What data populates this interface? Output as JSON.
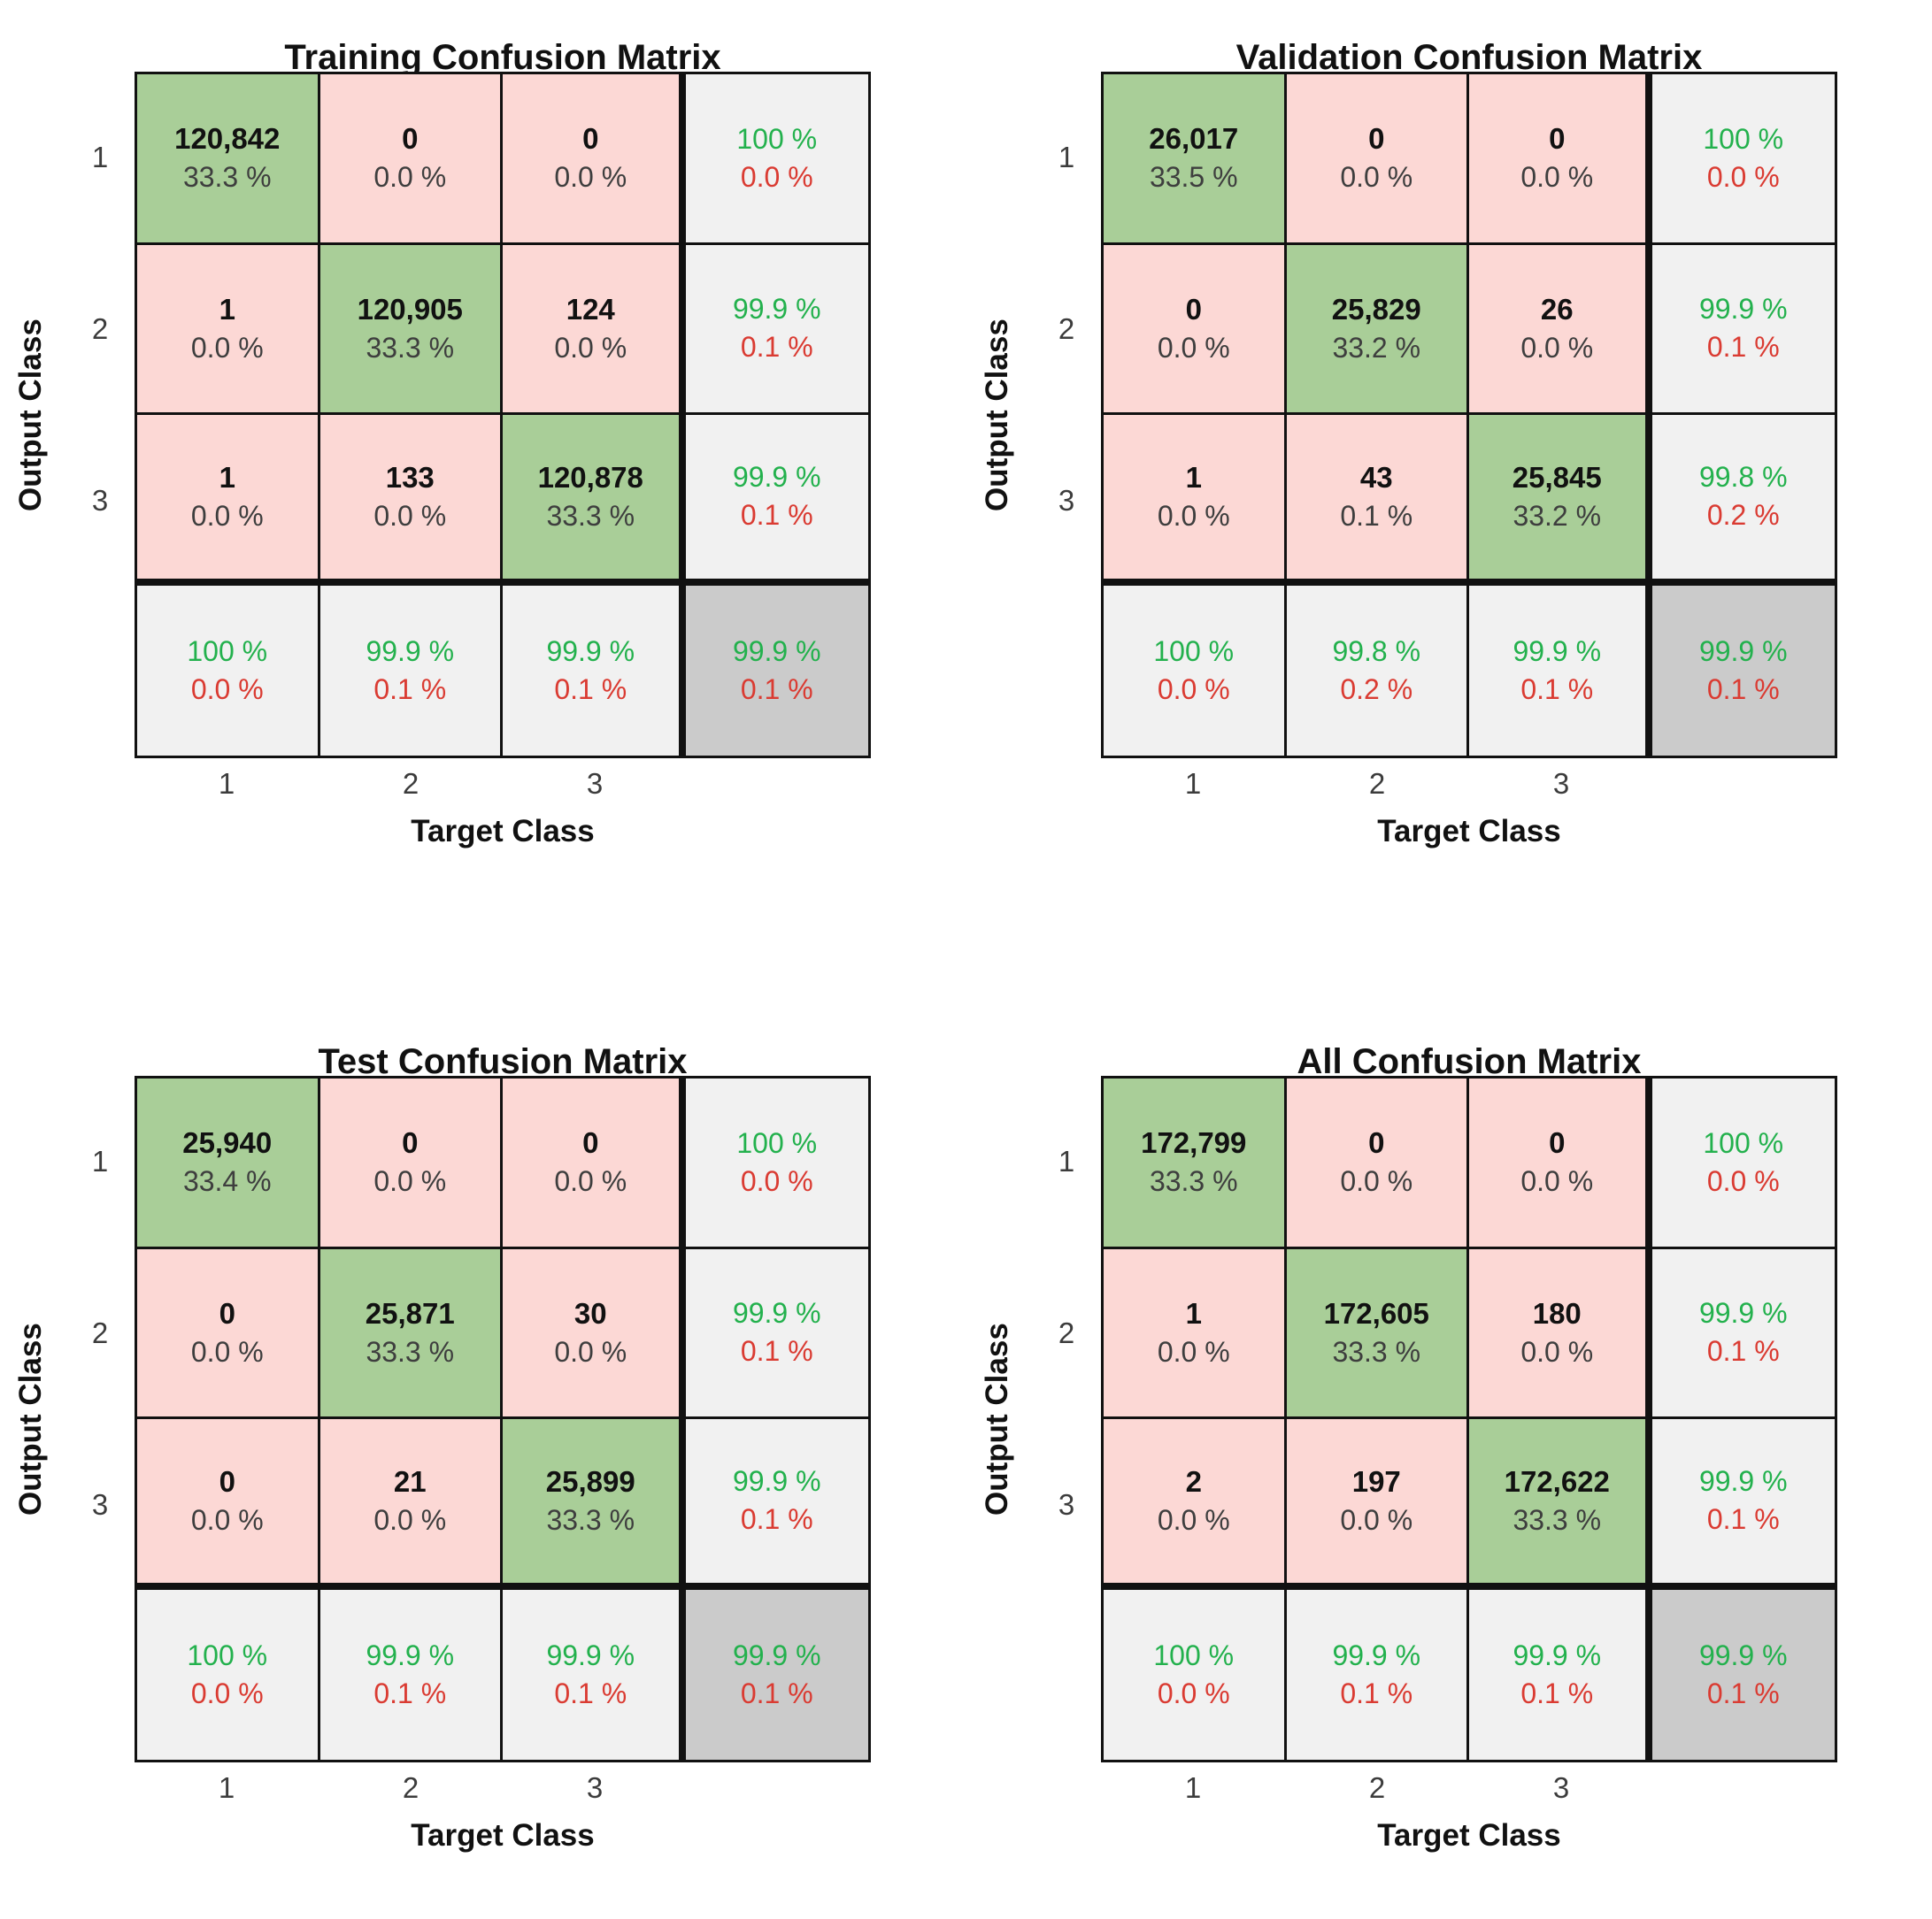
{
  "axis": {
    "x": "Target Class",
    "y": "Output Class",
    "ticks": [
      "1",
      "2",
      "3"
    ]
  },
  "colors": {
    "correct_cell_bg": "#A9CE98",
    "error_cell_bg": "#FCD8D5",
    "summary_cell_bg": "#F1F1F1",
    "corner_cell_bg": "#CBCBCB",
    "good_pct_text": "#23B14D",
    "bad_pct_text": "#DA3B32",
    "count_text": "#111111",
    "pct_text": "#3E3E3E",
    "border": "#111111"
  },
  "matrices": [
    {
      "title": "Training Confusion Matrix",
      "cells": [
        [
          [
            "120,842",
            "33.3 %"
          ],
          [
            "0",
            "0.0 %"
          ],
          [
            "0",
            "0.0 %"
          ],
          [
            "100 %",
            "0.0 %"
          ]
        ],
        [
          [
            "1",
            "0.0 %"
          ],
          [
            "120,905",
            "33.3 %"
          ],
          [
            "124",
            "0.0 %"
          ],
          [
            "99.9 %",
            "0.1 %"
          ]
        ],
        [
          [
            "1",
            "0.0 %"
          ],
          [
            "133",
            "0.0 %"
          ],
          [
            "120,878",
            "33.3 %"
          ],
          [
            "99.9 %",
            "0.1 %"
          ]
        ],
        [
          [
            "100 %",
            "0.0 %"
          ],
          [
            "99.9 %",
            "0.1 %"
          ],
          [
            "99.9 %",
            "0.1 %"
          ],
          [
            "99.9 %",
            "0.1 %"
          ]
        ]
      ]
    },
    {
      "title": "Validation Confusion Matrix",
      "cells": [
        [
          [
            "26,017",
            "33.5 %"
          ],
          [
            "0",
            "0.0 %"
          ],
          [
            "0",
            "0.0 %"
          ],
          [
            "100 %",
            "0.0 %"
          ]
        ],
        [
          [
            "0",
            "0.0 %"
          ],
          [
            "25,829",
            "33.2 %"
          ],
          [
            "26",
            "0.0 %"
          ],
          [
            "99.9 %",
            "0.1 %"
          ]
        ],
        [
          [
            "1",
            "0.0 %"
          ],
          [
            "43",
            "0.1 %"
          ],
          [
            "25,845",
            "33.2 %"
          ],
          [
            "99.8 %",
            "0.2 %"
          ]
        ],
        [
          [
            "100 %",
            "0.0 %"
          ],
          [
            "99.8 %",
            "0.2 %"
          ],
          [
            "99.9 %",
            "0.1 %"
          ],
          [
            "99.9 %",
            "0.1 %"
          ]
        ]
      ]
    },
    {
      "title": "Test Confusion Matrix",
      "cells": [
        [
          [
            "25,940",
            "33.4 %"
          ],
          [
            "0",
            "0.0 %"
          ],
          [
            "0",
            "0.0 %"
          ],
          [
            "100 %",
            "0.0 %"
          ]
        ],
        [
          [
            "0",
            "0.0 %"
          ],
          [
            "25,871",
            "33.3 %"
          ],
          [
            "30",
            "0.0 %"
          ],
          [
            "99.9 %",
            "0.1 %"
          ]
        ],
        [
          [
            "0",
            "0.0 %"
          ],
          [
            "21",
            "0.0 %"
          ],
          [
            "25,899",
            "33.3 %"
          ],
          [
            "99.9 %",
            "0.1 %"
          ]
        ],
        [
          [
            "100 %",
            "0.0 %"
          ],
          [
            "99.9 %",
            "0.1 %"
          ],
          [
            "99.9 %",
            "0.1 %"
          ],
          [
            "99.9 %",
            "0.1 %"
          ]
        ]
      ]
    },
    {
      "title": "All Confusion Matrix",
      "cells": [
        [
          [
            "172,799",
            "33.3 %"
          ],
          [
            "0",
            "0.0 %"
          ],
          [
            "0",
            "0.0 %"
          ],
          [
            "100 %",
            "0.0 %"
          ]
        ],
        [
          [
            "1",
            "0.0 %"
          ],
          [
            "172,605",
            "33.3 %"
          ],
          [
            "180",
            "0.0 %"
          ],
          [
            "99.9 %",
            "0.1 %"
          ]
        ],
        [
          [
            "2",
            "0.0 %"
          ],
          [
            "197",
            "0.0 %"
          ],
          [
            "172,622",
            "33.3 %"
          ],
          [
            "99.9 %",
            "0.1 %"
          ]
        ],
        [
          [
            "100 %",
            "0.0 %"
          ],
          [
            "99.9 %",
            "0.1 %"
          ],
          [
            "99.9 %",
            "0.1 %"
          ],
          [
            "99.9 %",
            "0.1 %"
          ]
        ]
      ]
    }
  ],
  "chart_data": [
    {
      "type": "heatmap",
      "title": "Training Confusion Matrix",
      "xlabel": "Target Class",
      "ylabel": "Output Class",
      "classes": [
        "1",
        "2",
        "3"
      ],
      "counts": [
        [
          120842,
          0,
          0
        ],
        [
          1,
          120905,
          124
        ],
        [
          1,
          133,
          120878
        ]
      ],
      "cell_pct_of_total": [
        [
          33.3,
          0.0,
          0.0
        ],
        [
          0.0,
          33.3,
          0.0
        ],
        [
          0.0,
          0.0,
          33.3
        ]
      ],
      "row_summary_pct_good_bad": [
        [
          100,
          0.0
        ],
        [
          99.9,
          0.1
        ],
        [
          99.9,
          0.1
        ]
      ],
      "col_summary_pct_good_bad": [
        [
          100,
          0.0
        ],
        [
          99.9,
          0.1
        ],
        [
          99.9,
          0.1
        ]
      ],
      "overall_pct_good_bad": [
        99.9,
        0.1
      ]
    },
    {
      "type": "heatmap",
      "title": "Validation Confusion Matrix",
      "xlabel": "Target Class",
      "ylabel": "Output Class",
      "classes": [
        "1",
        "2",
        "3"
      ],
      "counts": [
        [
          26017,
          0,
          0
        ],
        [
          0,
          25829,
          26
        ],
        [
          1,
          43,
          25845
        ]
      ],
      "cell_pct_of_total": [
        [
          33.5,
          0.0,
          0.0
        ],
        [
          0.0,
          33.2,
          0.0
        ],
        [
          0.0,
          0.1,
          33.2
        ]
      ],
      "row_summary_pct_good_bad": [
        [
          100,
          0.0
        ],
        [
          99.9,
          0.1
        ],
        [
          99.8,
          0.2
        ]
      ],
      "col_summary_pct_good_bad": [
        [
          100,
          0.0
        ],
        [
          99.8,
          0.2
        ],
        [
          99.9,
          0.1
        ]
      ],
      "overall_pct_good_bad": [
        99.9,
        0.1
      ]
    },
    {
      "type": "heatmap",
      "title": "Test Confusion Matrix",
      "xlabel": "Target Class",
      "ylabel": "Output Class",
      "classes": [
        "1",
        "2",
        "3"
      ],
      "counts": [
        [
          25940,
          0,
          0
        ],
        [
          0,
          25871,
          30
        ],
        [
          0,
          21,
          25899
        ]
      ],
      "cell_pct_of_total": [
        [
          33.4,
          0.0,
          0.0
        ],
        [
          0.0,
          33.3,
          0.0
        ],
        [
          0.0,
          0.0,
          33.3
        ]
      ],
      "row_summary_pct_good_bad": [
        [
          100,
          0.0
        ],
        [
          99.9,
          0.1
        ],
        [
          99.9,
          0.1
        ]
      ],
      "col_summary_pct_good_bad": [
        [
          100,
          0.0
        ],
        [
          99.9,
          0.1
        ],
        [
          99.9,
          0.1
        ]
      ],
      "overall_pct_good_bad": [
        99.9,
        0.1
      ]
    },
    {
      "type": "heatmap",
      "title": "All Confusion Matrix",
      "xlabel": "Target Class",
      "ylabel": "Output Class",
      "classes": [
        "1",
        "2",
        "3"
      ],
      "counts": [
        [
          172799,
          0,
          0
        ],
        [
          1,
          172605,
          180
        ],
        [
          2,
          197,
          172622
        ]
      ],
      "cell_pct_of_total": [
        [
          33.3,
          0.0,
          0.0
        ],
        [
          0.0,
          33.3,
          0.0
        ],
        [
          0.0,
          0.0,
          33.3
        ]
      ],
      "row_summary_pct_good_bad": [
        [
          100,
          0.0
        ],
        [
          99.9,
          0.1
        ],
        [
          99.9,
          0.1
        ]
      ],
      "col_summary_pct_good_bad": [
        [
          100,
          0.0
        ],
        [
          99.9,
          0.1
        ],
        [
          99.9,
          0.1
        ]
      ],
      "overall_pct_good_bad": [
        99.9,
        0.1
      ]
    }
  ]
}
